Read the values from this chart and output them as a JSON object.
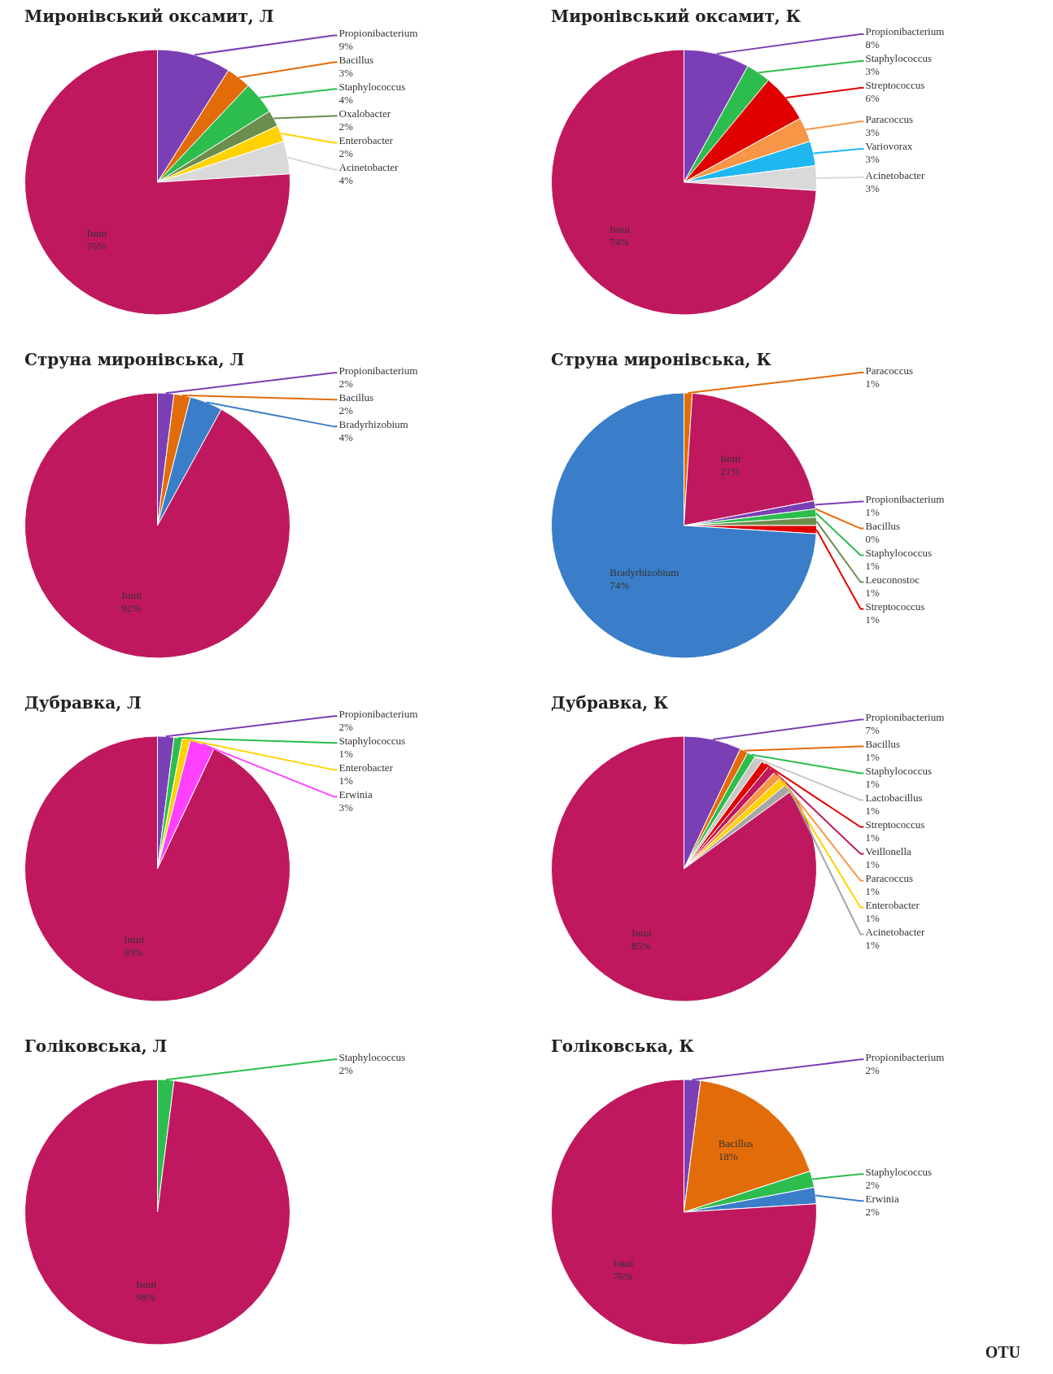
{
  "chart_data": [
    {
      "type": "pie",
      "title": "Миронівський оксамит, Л",
      "categories": [
        "Propionibacterium",
        "Bacillus",
        "Staphylococcus",
        "Oxalobacter",
        "Enterobacter",
        "Acinetobacter",
        "Інші"
      ],
      "values": [
        9,
        3,
        4,
        2,
        2,
        4,
        76
      ],
      "value_labels": [
        "9%",
        "3%",
        "4%",
        "2%",
        "2%",
        "4%",
        "76%"
      ],
      "colors": [
        "#7b3fb5",
        "#e36c0a",
        "#2dbd4e",
        "#6b8e4e",
        "#ffd200",
        "#d9d9d9",
        "#c0185f"
      ]
    },
    {
      "type": "pie",
      "title": "Миронівський оксамит, К",
      "categories": [
        "Propionibacterium",
        "Staphylococcus",
        "Streptococcus",
        "Paracoccus",
        "Variovorax",
        "Acinetobacter",
        "Інші"
      ],
      "values": [
        8,
        3,
        6,
        3,
        3,
        3,
        74
      ],
      "value_labels": [
        "8%",
        "3%",
        "6%",
        "3%",
        "3%",
        "3%",
        "74%"
      ],
      "colors": [
        "#7b3fb5",
        "#2dbd4e",
        "#e00000",
        "#f79646",
        "#1fb7f0",
        "#d9d9d9",
        "#c0185f"
      ]
    },
    {
      "type": "pie",
      "title": "Струна миронівська, Л",
      "categories": [
        "Propionibacterium",
        "Bacillus",
        "Bradyrhizobium",
        "Інші"
      ],
      "values": [
        2,
        2,
        4,
        92
      ],
      "value_labels": [
        "2%",
        "2%",
        "4%",
        "92%"
      ],
      "colors": [
        "#7b3fb5",
        "#e36c0a",
        "#3a7dc9",
        "#c0185f"
      ]
    },
    {
      "type": "pie",
      "title": "Струна миронівська, К",
      "categories": [
        "Paracoccus",
        "Інші",
        "Propionibacterium",
        "Bacillus",
        "Staphylococcus",
        "Leuconostoc",
        "Streptococcus",
        "Bradyrhizobium"
      ],
      "values": [
        1,
        21,
        1,
        0,
        1,
        1,
        1,
        74
      ],
      "value_labels": [
        "1%",
        "21%",
        "1%",
        "0%",
        "1%",
        "1%",
        "1%",
        "74%"
      ],
      "colors": [
        "#e36c0a",
        "#c0185f",
        "#7b3fb5",
        "#e36c0a",
        "#2dbd4e",
        "#6b8e4e",
        "#e00000",
        "#3a7dc9"
      ]
    },
    {
      "type": "pie",
      "title": "Дубравка, Л",
      "categories": [
        "Propionibacterium",
        "Staphylococcus",
        "Enterobacter",
        "Erwinia",
        "Інші"
      ],
      "values": [
        2,
        1,
        1,
        3,
        93
      ],
      "value_labels": [
        "2%",
        "1%",
        "1%",
        "3%",
        "93%"
      ],
      "colors": [
        "#7b3fb5",
        "#2dbd4e",
        "#ffd200",
        "#ff40ff",
        "#c0185f"
      ]
    },
    {
      "type": "pie",
      "title": "Дубравка, К",
      "categories": [
        "Propionibacterium",
        "Bacillus",
        "Staphylococcus",
        "Lactobacillus",
        "Streptococcus",
        "Veillonella",
        "Paracoccus",
        "Enterobacter",
        "Acinetobacter",
        "Інші"
      ],
      "values": [
        7,
        1,
        1,
        1,
        1,
        1,
        1,
        1,
        1,
        85
      ],
      "value_labels": [
        "7%",
        "1%",
        "1%",
        "1%",
        "1%",
        "1%",
        "1%",
        "1%",
        "1%",
        "85%"
      ],
      "colors": [
        "#7b3fb5",
        "#e36c0a",
        "#2dbd4e",
        "#c8c8c8",
        "#e00000",
        "#c0185f",
        "#f79646",
        "#ffd200",
        "#a6a6a6",
        "#c0185f"
      ]
    },
    {
      "type": "pie",
      "title": "Голіковська, Л",
      "categories": [
        "Staphylococcus",
        "Інші"
      ],
      "values": [
        2,
        98
      ],
      "value_labels": [
        "2%",
        "98%"
      ],
      "colors": [
        "#2dbd4e",
        "#c0185f"
      ]
    },
    {
      "type": "pie",
      "title": "Голіковська, К",
      "categories": [
        "Propionibacterium",
        "Bacillus",
        "Staphylococcus",
        "Erwinia",
        "Інші"
      ],
      "values": [
        2,
        18,
        2,
        2,
        76
      ],
      "value_labels": [
        "2%",
        "18%",
        "2%",
        "2%",
        "76%"
      ],
      "colors": [
        "#7b3fb5",
        "#e36c0a",
        "#2dbd4e",
        "#3a7dc9",
        "#c0185f"
      ],
      "annotations": [
        "OTU"
      ]
    }
  ]
}
